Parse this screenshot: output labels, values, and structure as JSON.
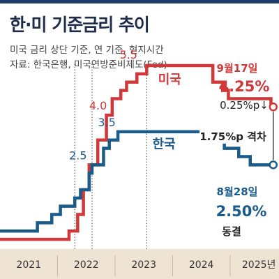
{
  "header": {
    "title": "한·미 기준금리 추이",
    "subtitle_line1": "미국 금리 상단 기준, 연 기준, 현지시간",
    "subtitle_line2": "자료: 한국은행, 미국연방준비제도(Fed)"
  },
  "colors": {
    "us": "#d0383a",
    "kr": "#1a5b8a",
    "title": "#1d2c4a",
    "top_bar": "#1d3d6b",
    "axis_band": "#efe3d3",
    "grid": "#d8d8d8",
    "year_ticks": "#c9b8a0"
  },
  "annotations": {
    "us_date": "9월17일",
    "us_rate": "4.25%",
    "us_change": "0.25%p↓",
    "kr_date": "8월28일",
    "kr_rate": "2.50%",
    "kr_status": "동결",
    "gap": "1.75%p 격차"
  },
  "chart_data": {
    "type": "line",
    "title": "한·미 기준금리 추이",
    "xlabel": "",
    "ylabel": "",
    "x_ticks": [
      "2021",
      "2022",
      "2023",
      "2024",
      "2025년"
    ],
    "xlim": [
      2021.0,
      2025.85
    ],
    "ylim": [
      0,
      5.9
    ],
    "grid": false,
    "legend": "inline labels",
    "step": true,
    "series": [
      {
        "name": "미국",
        "color": "#d0383a",
        "points": [
          [
            2021.0,
            0.25
          ],
          [
            2022.2,
            0.5
          ],
          [
            2022.35,
            1.0
          ],
          [
            2022.45,
            1.75
          ],
          [
            2022.55,
            2.5
          ],
          [
            2022.7,
            3.25
          ],
          [
            2022.85,
            4.0
          ],
          [
            2022.95,
            4.5
          ],
          [
            2023.1,
            4.75
          ],
          [
            2023.2,
            5.0
          ],
          [
            2023.38,
            5.25
          ],
          [
            2023.55,
            5.5
          ],
          [
            2024.7,
            5.0
          ],
          [
            2024.87,
            4.75
          ],
          [
            2024.97,
            4.5
          ],
          [
            2025.71,
            4.25
          ],
          [
            2025.75,
            4.25
          ]
        ],
        "labels": [
          {
            "x": 2022.85,
            "y": 4.0,
            "text": "4.0"
          },
          {
            "x": 2023.55,
            "y": 5.5,
            "text": "5.5"
          },
          {
            "x": 2023.95,
            "y": 4.95,
            "text": "미국"
          }
        ]
      },
      {
        "name": "한국",
        "color": "#1a5b8a",
        "points": [
          [
            2021.0,
            0.5
          ],
          [
            2021.65,
            0.75
          ],
          [
            2021.9,
            1.0
          ],
          [
            2022.05,
            1.25
          ],
          [
            2022.3,
            1.5
          ],
          [
            2022.4,
            1.75
          ],
          [
            2022.55,
            2.25
          ],
          [
            2022.6,
            2.5
          ],
          [
            2022.8,
            3.0
          ],
          [
            2022.9,
            3.25
          ],
          [
            2023.05,
            3.5
          ],
          [
            2024.8,
            3.25
          ],
          [
            2024.9,
            3.0
          ],
          [
            2025.15,
            2.75
          ],
          [
            2025.35,
            2.5
          ],
          [
            2025.75,
            2.5
          ]
        ],
        "labels": [
          {
            "x": 2022.55,
            "y": 2.5,
            "text": "2.5"
          },
          {
            "x": 2023.05,
            "y": 3.5,
            "text": "3.5"
          },
          {
            "x": 2023.85,
            "y": 3.0,
            "text": "한국"
          }
        ]
      }
    ],
    "reference_lines_x": [
      2022.3,
      2022.6,
      2023.55
    ],
    "annotations": [
      {
        "series": "미국",
        "date": "9월17일",
        "value": "4.25%",
        "note": "0.25%p↓"
      },
      {
        "series": "한국",
        "date": "8월28일",
        "value": "2.50%",
        "note": "동결"
      },
      {
        "between": [
          "미국",
          "한국"
        ],
        "text": "1.75%p 격차"
      }
    ]
  }
}
